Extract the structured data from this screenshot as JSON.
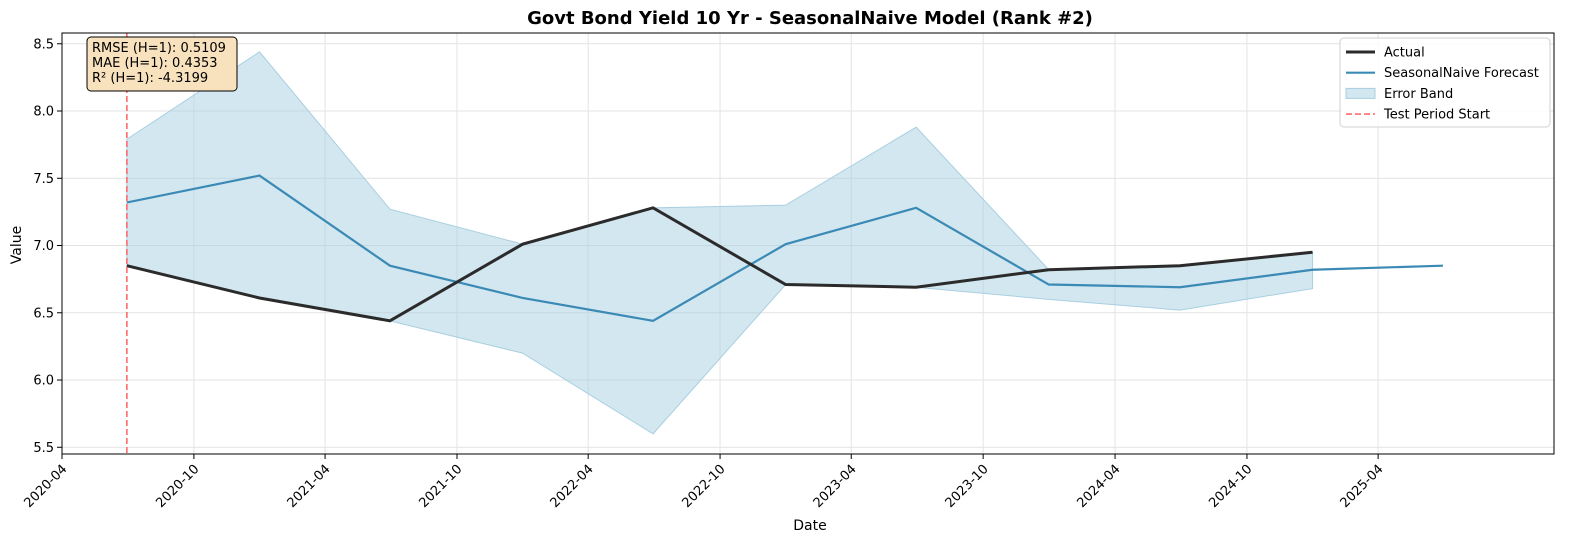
{
  "chart_data": {
    "type": "line",
    "title": "Govt Bond Yield 10 Yr - SeasonalNaive Model (Rank #2)",
    "xlabel": "Date",
    "ylabel": "Value",
    "xlim": [
      "2020-04-01",
      "2025-12-01"
    ],
    "ylim": [
      5.45,
      8.58
    ],
    "x_ticks": [
      "2020-04",
      "2020-10",
      "2021-04",
      "2021-10",
      "2022-04",
      "2022-10",
      "2023-04",
      "2023-10",
      "2024-04",
      "2024-10",
      "2025-04"
    ],
    "y_ticks": [
      5.5,
      6.0,
      6.5,
      7.0,
      7.5,
      8.0,
      8.5
    ],
    "grid": true,
    "legend_position": "top-right",
    "test_period_start": "2020-06-30",
    "series": [
      {
        "name": "Actual",
        "color": "#2b2b2b",
        "x": [
          "2020-06-30",
          "2020-12-31",
          "2021-06-30",
          "2021-12-31",
          "2022-06-30",
          "2022-12-31",
          "2023-06-30",
          "2023-12-31",
          "2024-06-30",
          "2024-12-31"
        ],
        "values": [
          6.85,
          6.61,
          6.44,
          7.01,
          7.28,
          6.71,
          6.69,
          6.82,
          6.85,
          6.95
        ]
      },
      {
        "name": "SeasonalNaive Forecast",
        "color": "#3a8ab5",
        "x": [
          "2020-06-30",
          "2020-12-31",
          "2021-06-30",
          "2021-12-31",
          "2022-06-30",
          "2022-12-31",
          "2023-06-30",
          "2023-12-31",
          "2024-06-30",
          "2024-12-31",
          "2025-06-30"
        ],
        "values": [
          7.32,
          7.52,
          6.85,
          6.61,
          6.44,
          7.01,
          7.28,
          6.71,
          6.69,
          6.82,
          6.85
        ]
      }
    ],
    "error_band": {
      "name": "Error Band",
      "color": "#a8cfe1",
      "x": [
        "2020-06-30",
        "2020-12-31",
        "2021-06-30",
        "2021-12-31",
        "2022-06-30",
        "2022-12-31",
        "2023-06-30",
        "2023-12-31",
        "2024-06-30",
        "2024-12-31"
      ],
      "upper": [
        7.79,
        8.44,
        7.27,
        7.01,
        7.28,
        7.3,
        7.88,
        6.82,
        6.85,
        6.95
      ],
      "lower": [
        6.85,
        6.61,
        6.44,
        6.2,
        5.6,
        6.71,
        6.69,
        6.6,
        6.52,
        6.68
      ]
    },
    "test_line": {
      "name": "Test Period Start",
      "color": "#ff6b6b"
    },
    "metrics": [
      "RMSE (H=1): 0.5109",
      "MAE (H=1): 0.4353",
      "R² (H=1): -4.3199"
    ]
  }
}
